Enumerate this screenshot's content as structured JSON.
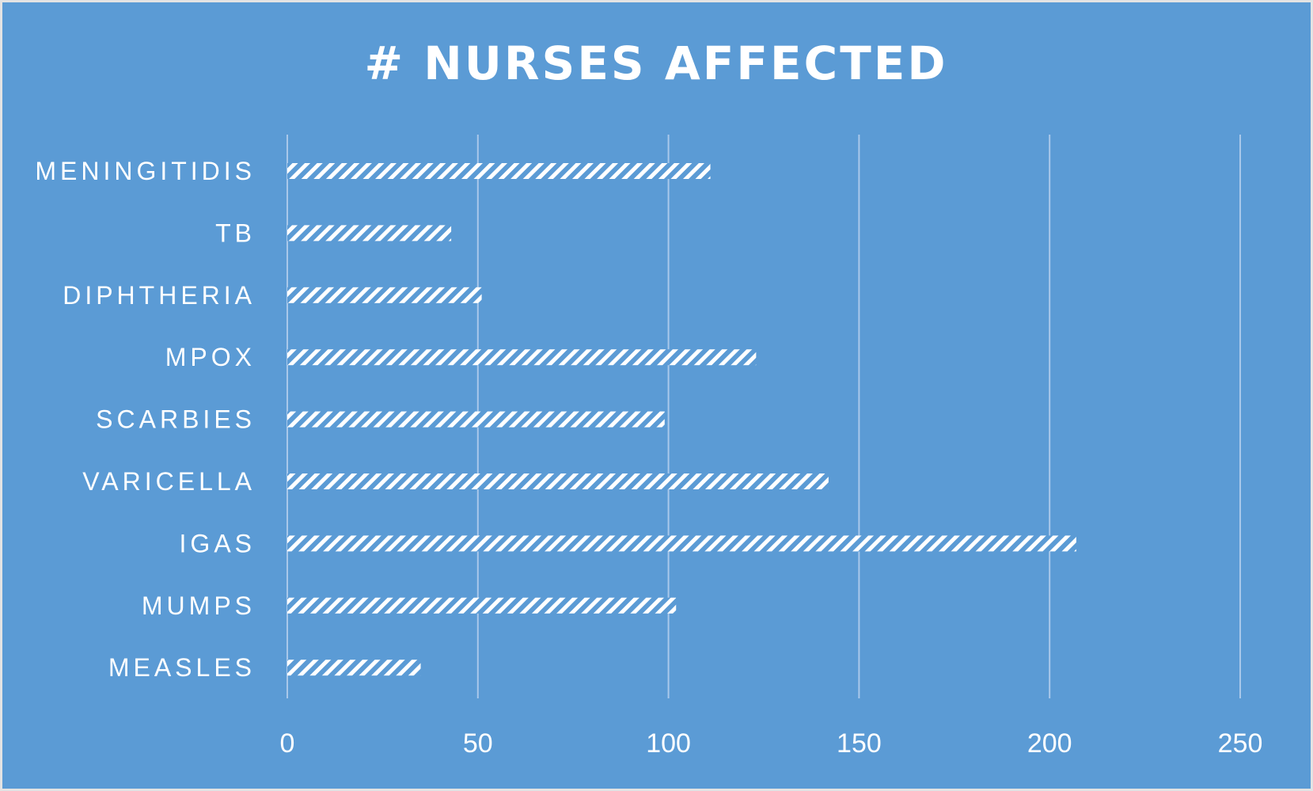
{
  "chart_data": {
    "type": "bar",
    "orientation": "horizontal",
    "title": "# NURSES AFFECTED",
    "categories": [
      "MENINGITIDIS",
      "TB",
      "DIPHTHERIA",
      "MPOX",
      "SCARBIES",
      "VARICELLA",
      "IGAS",
      "MUMPS",
      "MEASLES"
    ],
    "values": [
      111,
      43,
      51,
      123,
      99,
      142,
      207,
      102,
      35
    ],
    "xlim": [
      0,
      250
    ],
    "xticks": [
      0,
      50,
      100,
      150,
      200,
      250
    ],
    "grid": "vertical",
    "legend": "none",
    "bar_pattern": "diagonal-hatch"
  },
  "colors": {
    "background": "#5b9bd5",
    "bar_fill": "#ffffff",
    "text": "#ffffff",
    "gridline": "#a9c8ea",
    "frame": "#e3e3e3"
  }
}
